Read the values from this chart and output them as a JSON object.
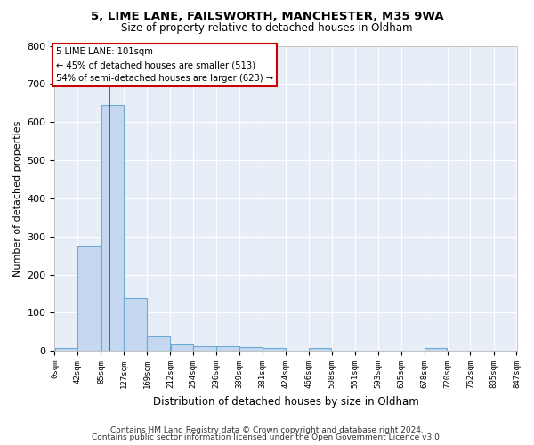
{
  "title1": "5, LIME LANE, FAILSWORTH, MANCHESTER, M35 9WA",
  "title2": "Size of property relative to detached houses in Oldham",
  "xlabel": "Distribution of detached houses by size in Oldham",
  "ylabel": "Number of detached properties",
  "bin_edges": [
    0,
    42,
    85,
    127,
    169,
    212,
    254,
    296,
    339,
    381,
    424,
    466,
    508,
    551,
    593,
    635,
    678,
    720,
    762,
    805,
    847
  ],
  "bar_heights": [
    8,
    275,
    645,
    138,
    37,
    17,
    12,
    11,
    10,
    7,
    0,
    8,
    0,
    0,
    0,
    0,
    7,
    0,
    0,
    0
  ],
  "bar_color": "#c5d8f0",
  "bar_edge_color": "#6aaad4",
  "bg_color": "#e8eef8",
  "grid_color": "#ffffff",
  "red_line_x": 101,
  "annotation_line1": "5 LIME LANE: 101sqm",
  "annotation_line2": "← 45% of detached houses are smaller (513)",
  "annotation_line3": "54% of semi-detached houses are larger (623) →",
  "annotation_box_color": "#ffffff",
  "annotation_box_edge_color": "#cc0000",
  "ylim": [
    0,
    800
  ],
  "yticks": [
    0,
    100,
    200,
    300,
    400,
    500,
    600,
    700,
    800
  ],
  "footnote1": "Contains HM Land Registry data © Crown copyright and database right 2024.",
  "footnote2": "Contains public sector information licensed under the Open Government Licence v3.0."
}
